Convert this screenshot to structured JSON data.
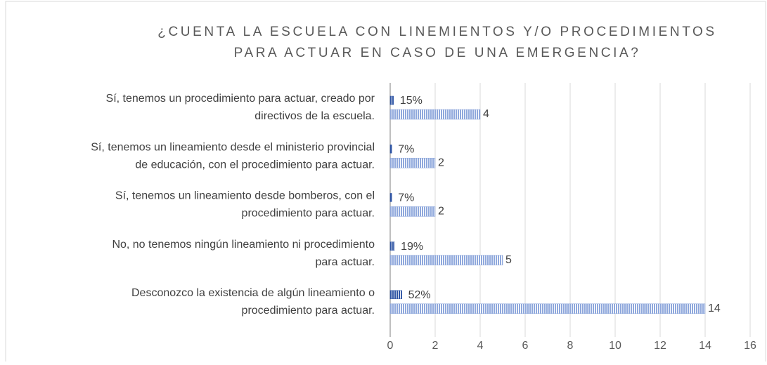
{
  "chart_data": {
    "type": "bar",
    "orientation": "horizontal",
    "title": [
      "¿CUENTA LA ESCUELA CON LINEMIENTOS Y/O PROCEDIMIENTOS",
      "PARA ACTUAR EN CASO DE UNA EMERGENCIA?"
    ],
    "categories": [
      [
        "Sí, tenemos un procedimiento para actuar, creado por",
        "directivos de la escuela."
      ],
      [
        "Sí, tenemos un lineamiento desde el ministerio provincial",
        "de educación, con el procedimiento para actuar."
      ],
      [
        "Sí, tenemos un lineamiento desde bomberos, con el",
        "procedimiento para actuar."
      ],
      [
        "No, no tenemos ningún lineamiento ni procedimiento",
        "para actuar."
      ],
      [
        "Desconozco la existencia de algún lineamiento o",
        "procedimiento para actuar."
      ]
    ],
    "series": [
      {
        "color": "#2f55a4",
        "values": [
          0.15,
          0.07,
          0.07,
          0.19,
          0.52
        ],
        "value_labels": [
          "15%",
          "7%",
          "7%",
          "19%",
          "52%"
        ]
      },
      {
        "color": "#8fa8dc",
        "values": [
          4,
          2,
          2,
          5,
          14
        ]
      }
    ],
    "xlim": [
      0,
      16
    ],
    "xticks": [
      0,
      2,
      4,
      6,
      8,
      10,
      12,
      14,
      16
    ],
    "grid": true
  }
}
